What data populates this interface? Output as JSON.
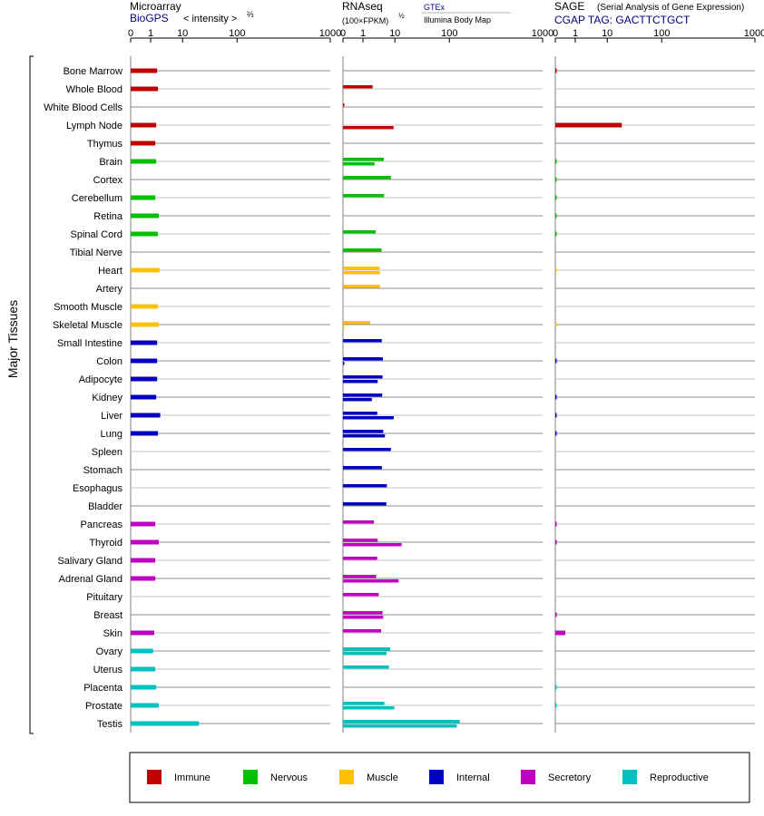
{
  "headers": {
    "microarray": {
      "title": "Microarray",
      "source": "BioGPS",
      "unit": "< intensity >",
      "unit_exp": "⅔"
    },
    "rnaseq": {
      "title": "RNAseq",
      "unit": "(100×FPKM)",
      "unit_exp": "½",
      "source1": "GTEx",
      "source2": "Illumina Body Map"
    },
    "sage": {
      "title": "SAGE",
      "subtitle": "(Serial Analysis of Gene Expression)",
      "tag": "CGAP TAG: GACTTCTGCT"
    }
  },
  "side_label": "Major Tissues",
  "legend": {
    "items": [
      {
        "label": "Immune",
        "color": "#C00000"
      },
      {
        "label": "Nervous",
        "color": "#00C000"
      },
      {
        "label": "Muscle",
        "color": "#FFC000"
      },
      {
        "label": "Internal",
        "color": "#0000C0"
      },
      {
        "label": "Secretory",
        "color": "#C000C0"
      },
      {
        "label": "Reproductive",
        "color": "#00C0C0"
      }
    ]
  },
  "chart_data": [
    {
      "type": "bar",
      "panel": "Microarray",
      "axis": {
        "scale": "intensity^(2/3)",
        "ticks": [
          "0",
          "1",
          "10",
          "100",
          "1000"
        ],
        "tick_values": [
          0,
          1,
          10,
          100,
          1000
        ],
        "range": [
          0,
          1000
        ]
      },
      "categories": [
        "Bone Marrow",
        "Whole Blood",
        "White Blood Cells",
        "Lymph Node",
        "Thymus",
        "Brain",
        "Cortex",
        "Cerebellum",
        "Retina",
        "Spinal Cord",
        "Tibial Nerve",
        "Heart",
        "Artery",
        "Smooth Muscle",
        "Skeletal Muscle",
        "Small Intestine",
        "Colon",
        "Adipocyte",
        "Kidney",
        "Liver",
        "Lung",
        "Spleen",
        "Stomach",
        "Esophagus",
        "Bladder",
        "Pancreas",
        "Thyroid",
        "Salivary Gland",
        "Adrenal Gland",
        "Pituitary",
        "Breast",
        "Skin",
        "Ovary",
        "Uterus",
        "Placenta",
        "Prostate",
        "Testis"
      ],
      "groups": [
        "Immune",
        "Immune",
        "Immune",
        "Immune",
        "Immune",
        "Nervous",
        "Nervous",
        "Nervous",
        "Nervous",
        "Nervous",
        "Nervous",
        "Muscle",
        "Muscle",
        "Muscle",
        "Muscle",
        "Internal",
        "Internal",
        "Internal",
        "Internal",
        "Internal",
        "Internal",
        "Internal",
        "Internal",
        "Internal",
        "Internal",
        "Secretory",
        "Secretory",
        "Secretory",
        "Secretory",
        "Secretory",
        "Secretory",
        "Secretory",
        "Reproductive",
        "Reproductive",
        "Reproductive",
        "Reproductive",
        "Reproductive"
      ],
      "series": [
        {
          "values": [
            1.6,
            1.7,
            null,
            1.5,
            1.4,
            1.5,
            null,
            1.4,
            1.8,
            1.7,
            null,
            1.9,
            null,
            1.7,
            1.8,
            1.6,
            1.6,
            1.6,
            1.5,
            2.0,
            1.7,
            null,
            null,
            null,
            null,
            1.4,
            1.8,
            1.4,
            1.4,
            null,
            null,
            1.3,
            1.2,
            1.4,
            1.5,
            1.8,
            20.0
          ]
        }
      ]
    },
    {
      "type": "bar",
      "panel": "RNAseq",
      "axis": {
        "scale": "(100×FPKM)^(1/2)",
        "ticks": [
          "0",
          "1",
          "10",
          "100",
          "1000"
        ],
        "tick_values": [
          0,
          1,
          10,
          100,
          1000
        ],
        "range": [
          0,
          1000
        ]
      },
      "categories": [
        "Bone Marrow",
        "Whole Blood",
        "White Blood Cells",
        "Lymph Node",
        "Thymus",
        "Brain",
        "Cortex",
        "Cerebellum",
        "Retina",
        "Spinal Cord",
        "Tibial Nerve",
        "Heart",
        "Artery",
        "Smooth Muscle",
        "Skeletal Muscle",
        "Small Intestine",
        "Colon",
        "Adipocyte",
        "Kidney",
        "Liver",
        "Lung",
        "Spleen",
        "Stomach",
        "Esophagus",
        "Bladder",
        "Pancreas",
        "Thyroid",
        "Salivary Gland",
        "Adrenal Gland",
        "Pituitary",
        "Breast",
        "Skin",
        "Ovary",
        "Uterus",
        "Placenta",
        "Prostate",
        "Testis"
      ],
      "series": [
        {
          "name": "GTEx",
          "values": [
            null,
            2.0,
            0.0,
            null,
            null,
            4.5,
            7.5,
            4.6,
            null,
            2.5,
            3.8,
            3.3,
            3.4,
            null,
            1.7,
            3.9,
            4.2,
            4.1,
            4.0,
            2.8,
            4.3,
            7.5,
            3.9,
            5.6,
            5.4,
            2.2,
            2.9,
            2.8,
            2.6,
            3.1,
            4.1,
            3.7,
            7.1,
            6.5,
            null,
            4.7,
            129.0
          ]
        },
        {
          "name": "Illumina Body Map",
          "values": [
            null,
            null,
            null,
            9.1,
            null,
            2.3,
            null,
            null,
            null,
            null,
            null,
            3.4,
            null,
            null,
            0.0,
            null,
            0.0,
            2.9,
            1.9,
            9.2,
            4.9,
            null,
            null,
            null,
            null,
            null,
            13.3,
            null,
            11.7,
            null,
            4.3,
            null,
            5.5,
            null,
            null,
            9.6,
            120.0
          ]
        }
      ]
    },
    {
      "type": "bar",
      "panel": "SAGE",
      "axis": {
        "ticks": [
          "0",
          "1",
          "10",
          "100",
          "1000"
        ],
        "tick_values": [
          0,
          1,
          10,
          100,
          1000
        ],
        "range": [
          0,
          1000
        ]
      },
      "categories": [
        "Bone Marrow",
        "Whole Blood",
        "White Blood Cells",
        "Lymph Node",
        "Thymus",
        "Brain",
        "Cortex",
        "Cerebellum",
        "Retina",
        "Spinal Cord",
        "Tibial Nerve",
        "Heart",
        "Artery",
        "Smooth Muscle",
        "Skeletal Muscle",
        "Small Intestine",
        "Colon",
        "Adipocyte",
        "Kidney",
        "Liver",
        "Lung",
        "Spleen",
        "Stomach",
        "Esophagus",
        "Bladder",
        "Pancreas",
        "Thyroid",
        "Salivary Gland",
        "Adrenal Gland",
        "Pituitary",
        "Breast",
        "Skin",
        "Ovary",
        "Uterus",
        "Placenta",
        "Prostate",
        "Testis"
      ],
      "series": [
        {
          "values": [
            0.05,
            null,
            null,
            18.5,
            null,
            0.03,
            0.03,
            0.03,
            0.03,
            0.03,
            null,
            0.02,
            null,
            null,
            0.02,
            null,
            0.05,
            null,
            0.05,
            0.05,
            0.05,
            null,
            null,
            null,
            null,
            0.04,
            0.04,
            null,
            null,
            null,
            0.04,
            0.5,
            null,
            null,
            0.03,
            0.03,
            null
          ]
        }
      ]
    }
  ]
}
